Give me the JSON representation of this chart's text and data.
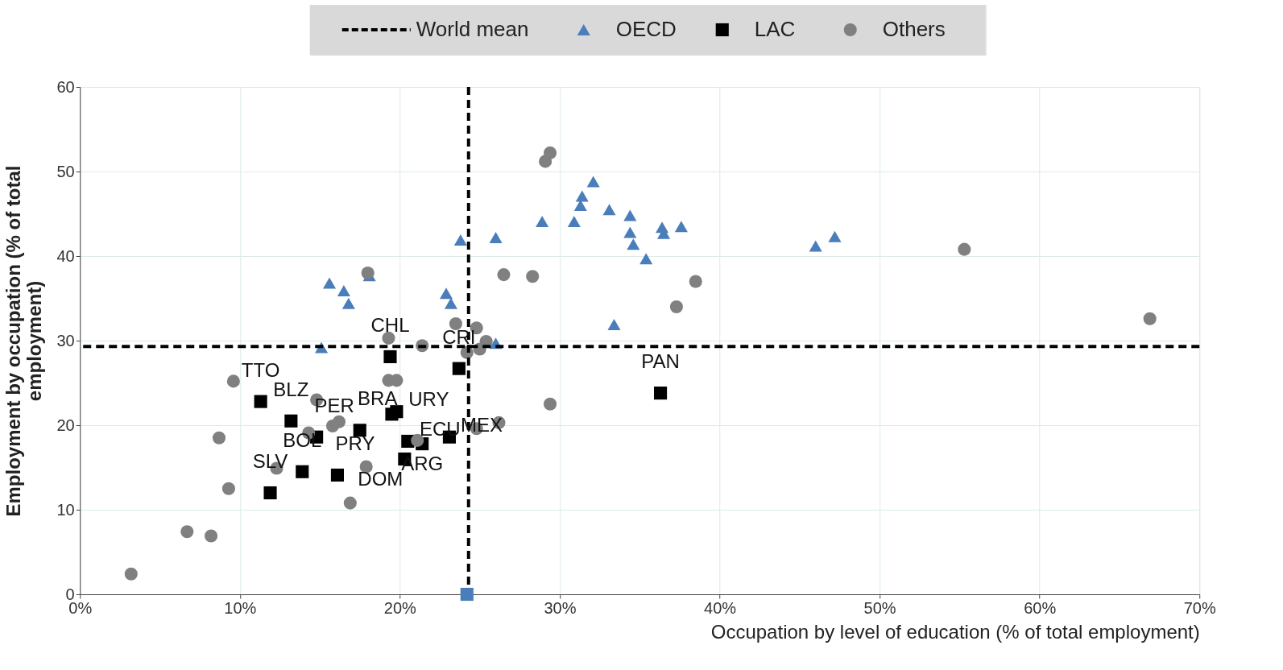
{
  "chart_data": {
    "type": "scatter",
    "xlabel": "Occupation by level of education (% of total employment)",
    "ylabel": "Employment  by occupation (% of total employment)",
    "xlim": [
      0,
      70
    ],
    "xticks": [
      {
        "value": 0,
        "label": "0%"
      },
      {
        "value": 10,
        "label": "10%"
      },
      {
        "value": 20,
        "label": "20%"
      },
      {
        "value": 30,
        "label": "30%"
      },
      {
        "value": 40,
        "label": "40%"
      },
      {
        "value": 50,
        "label": "50%"
      },
      {
        "value": 60,
        "label": "60%"
      },
      {
        "value": 70,
        "label": "70%"
      }
    ],
    "ylim": [
      0,
      60
    ],
    "yticks": [
      0,
      10,
      20,
      30,
      40,
      50,
      60
    ],
    "grid": true,
    "legend": "top",
    "ref_lines": [
      {
        "axis": "x",
        "value": 24.3,
        "label": "World mean",
        "color": "#000000",
        "line_style": "dashed"
      },
      {
        "axis": "y",
        "value": 29.3,
        "color": "#000000",
        "line_style": "dashed"
      }
    ],
    "series": [
      {
        "name": "OECD",
        "color": "#4a7ebb",
        "marker": "triangle",
        "x": [
          15.1,
          15.6,
          16.5,
          16.8,
          18.1,
          22.9,
          23.2,
          23.8,
          26.0,
          28.9,
          30.9,
          31.3,
          31.4,
          32.1,
          33.1,
          34.4,
          34.4,
          34.6,
          35.4,
          36.4,
          36.5,
          37.6,
          33.4,
          26.0,
          46.0,
          47.2
        ],
        "values": [
          29.2,
          36.8,
          35.9,
          34.4,
          37.7,
          35.6,
          34.4,
          41.9,
          42.2,
          44.1,
          44.1,
          46.0,
          47.1,
          48.8,
          45.5,
          44.8,
          42.8,
          41.4,
          39.7,
          43.4,
          42.7,
          43.5,
          31.9,
          29.7,
          41.2,
          42.3
        ]
      },
      {
        "name": "LAC",
        "color": "#000000",
        "marker": "square",
        "x": [
          19.4,
          23.7,
          11.3,
          13.2,
          14.8,
          17.5,
          11.9,
          13.9,
          16.1,
          19.8,
          19.5,
          20.5,
          21.4,
          20.3,
          23.1,
          36.3
        ],
        "values": [
          28.1,
          26.7,
          22.8,
          20.5,
          18.6,
          19.4,
          12.0,
          14.5,
          14.1,
          21.6,
          21.3,
          18.1,
          17.8,
          16.0,
          18.6,
          23.8
        ]
      },
      {
        "name": "Others",
        "color": "#808080",
        "marker": "circle",
        "x": [
          3.2,
          6.7,
          8.2,
          9.3,
          8.7,
          9.6,
          12.3,
          14.3,
          14.8,
          15.8,
          16.2,
          17.9,
          16.9,
          18.0,
          19.3,
          19.3,
          19.8,
          21.4,
          21.1,
          23.5,
          24.8,
          24.2,
          25.0,
          25.4,
          24.8,
          26.2,
          26.5,
          28.3,
          29.1,
          29.4,
          29.4,
          37.3,
          38.5,
          55.3,
          66.9
        ],
        "values": [
          2.4,
          7.4,
          6.9,
          12.5,
          18.5,
          25.2,
          14.9,
          19.1,
          23.0,
          19.9,
          20.4,
          15.1,
          10.8,
          38.0,
          30.3,
          25.3,
          25.3,
          29.4,
          18.2,
          32.0,
          31.5,
          28.6,
          29.0,
          29.9,
          19.6,
          20.3,
          37.8,
          37.6,
          51.2,
          52.2,
          22.5,
          34.0,
          37.0,
          40.8,
          32.6
        ]
      },
      {
        "color": "#4a7ebb",
        "marker": "square",
        "x": [
          24.2
        ],
        "values": [
          0
        ]
      }
    ],
    "annotations": [
      {
        "text": "CHL",
        "x": 19.4,
        "y": 28.1
      },
      {
        "text": "CRI",
        "x": 23.7,
        "y": 26.7
      },
      {
        "text": "TTO",
        "x": 11.3,
        "y": 22.8
      },
      {
        "text": "BLZ",
        "x": 13.2,
        "y": 20.5
      },
      {
        "text": "PER",
        "x": 14.8,
        "y": 18.6
      },
      {
        "text": "BRA",
        "x": 17.5,
        "y": 19.4
      },
      {
        "text": "SLV",
        "x": 11.9,
        "y": 12.0
      },
      {
        "text": "BOL",
        "x": 13.9,
        "y": 14.5
      },
      {
        "text": "PRY",
        "x": 16.1,
        "y": 14.1
      },
      {
        "text": "URY",
        "x": 19.8,
        "y": 21.6
      },
      {
        "text": "ECU",
        "x": 20.5,
        "y": 18.1
      },
      {
        "text": "ARG",
        "x": 21.4,
        "y": 17.8
      },
      {
        "text": "DOM",
        "x": 20.3,
        "y": 16.0
      },
      {
        "text": "MEX",
        "x": 23.1,
        "y": 18.6
      },
      {
        "text": "PAN",
        "x": 36.3,
        "y": 23.8
      }
    ]
  }
}
